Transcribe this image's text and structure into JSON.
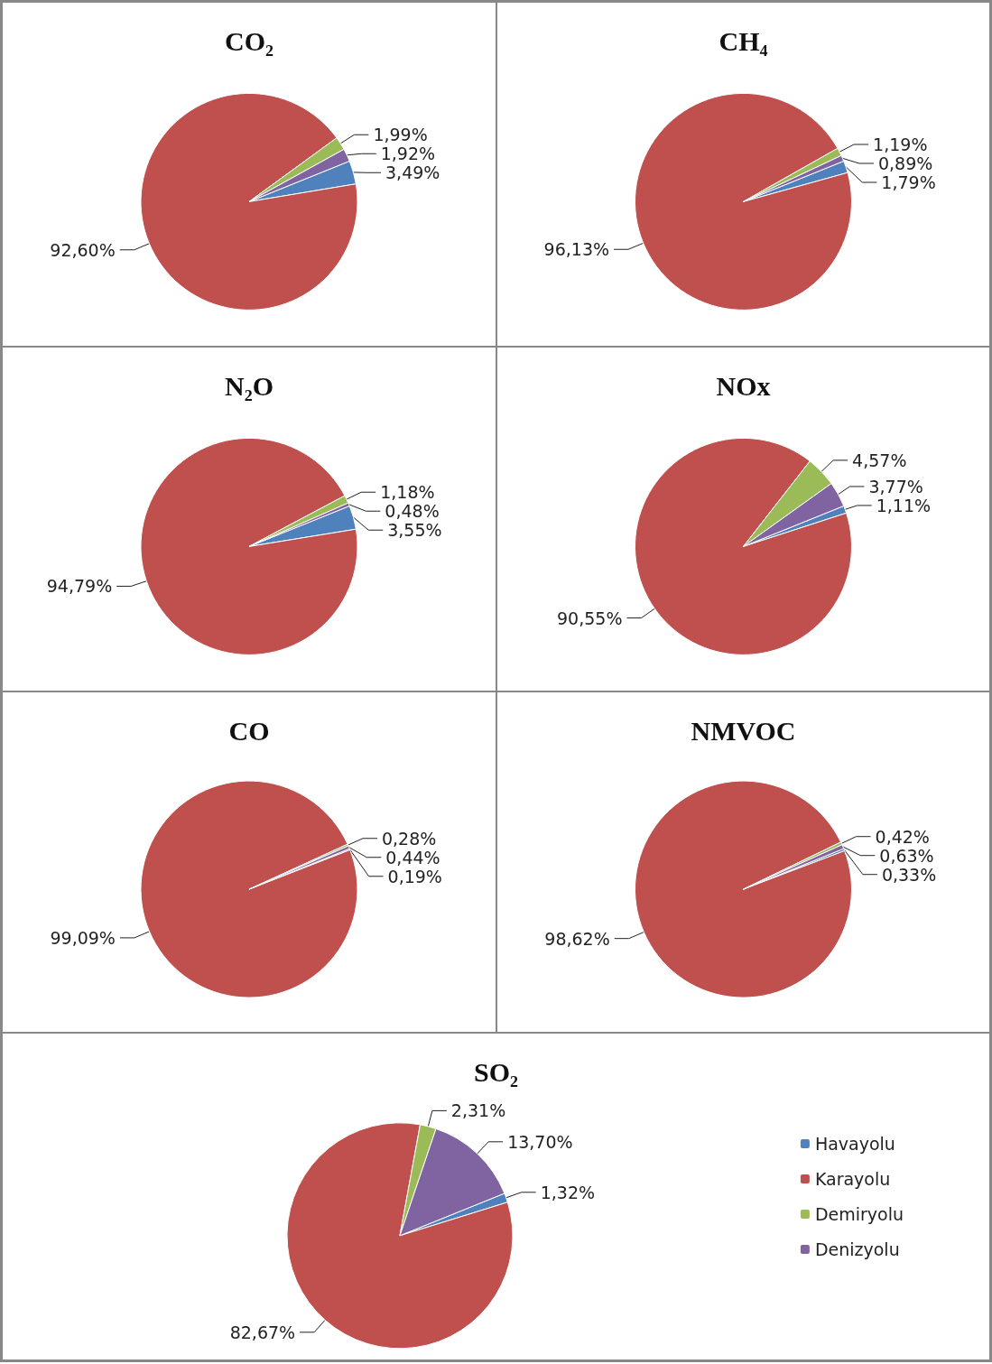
{
  "chart_data": [
    {
      "type": "pie",
      "title": "CO₂",
      "categories": [
        null,
        null,
        null,
        null
      ],
      "values": [
        3.49,
        92.6,
        1.99,
        1.92
      ],
      "colors": [
        "#4f81bd",
        "#c0504d",
        "#9bbb59",
        "#8064a2"
      ],
      "value_labels": [
        "3,49%",
        "92,60%",
        "1,99%",
        "1,92%"
      ],
      "legend": false
    },
    {
      "type": "pie",
      "title": "CH₄",
      "categories": [
        null,
        null,
        null,
        null
      ],
      "values": [
        1.79,
        96.13,
        1.19,
        0.89
      ],
      "colors": [
        "#4f81bd",
        "#c0504d",
        "#9bbb59",
        "#8064a2"
      ],
      "value_labels": [
        "1,79%",
        "96,13%",
        "1,19%",
        "0,89%"
      ],
      "legend": false
    },
    {
      "type": "pie",
      "title": "N₂O",
      "categories": [
        null,
        null,
        null,
        null
      ],
      "values": [
        3.55,
        94.79,
        1.18,
        0.48
      ],
      "colors": [
        "#4f81bd",
        "#c0504d",
        "#9bbb59",
        "#8064a2"
      ],
      "value_labels": [
        "3,55%",
        "94,79%",
        "1,18%",
        "0,48%"
      ],
      "legend": false
    },
    {
      "type": "pie",
      "title": "NOx",
      "categories": [
        null,
        null,
        null,
        null
      ],
      "values": [
        1.11,
        90.55,
        4.57,
        3.77
      ],
      "colors": [
        "#4f81bd",
        "#c0504d",
        "#9bbb59",
        "#8064a2"
      ],
      "value_labels": [
        "1,11%",
        "90,55%",
        "4,57%",
        "3,77%"
      ],
      "legend": false
    },
    {
      "type": "pie",
      "title": "CO",
      "categories": [
        null,
        null,
        null,
        null
      ],
      "values": [
        0.19,
        99.09,
        0.28,
        0.44
      ],
      "colors": [
        "#4f81bd",
        "#c0504d",
        "#9bbb59",
        "#8064a2"
      ],
      "value_labels": [
        "0,19%",
        "99,09%",
        "0,28%",
        "0,44%"
      ],
      "legend": false
    },
    {
      "type": "pie",
      "title": "NMVOC",
      "categories": [
        null,
        null,
        null,
        null
      ],
      "values": [
        0.33,
        98.62,
        0.42,
        0.63
      ],
      "colors": [
        "#4f81bd",
        "#c0504d",
        "#9bbb59",
        "#8064a2"
      ],
      "value_labels": [
        "0,33%",
        "98,62%",
        "0,42%",
        "0,63%"
      ],
      "legend": false
    },
    {
      "type": "pie",
      "title": "SO₂",
      "categories": [
        "Havayolu",
        "Karayolu",
        "Demiryolu",
        "Denizyolu"
      ],
      "values": [
        1.32,
        82.67,
        2.31,
        13.7
      ],
      "colors": [
        "#4f81bd",
        "#c0504d",
        "#9bbb59",
        "#8064a2"
      ],
      "value_labels": [
        "1,32%",
        "82,67%",
        "2,31%",
        "13,70%"
      ],
      "legend": "right"
    }
  ]
}
